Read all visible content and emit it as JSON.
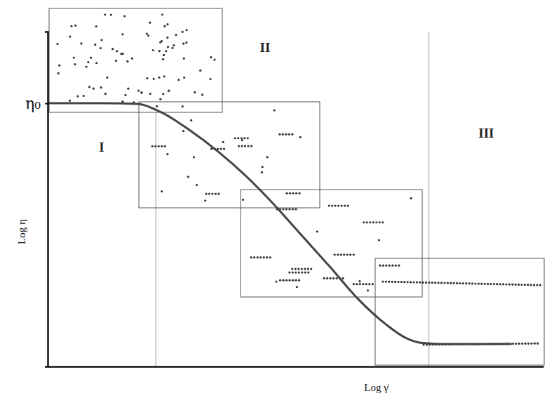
{
  "chart_data": {
    "type": "line",
    "x": [
      0,
      1.16,
      1.8,
      2.29,
      2.86,
      3.42,
      3.99,
      4.55,
      5.12,
      5.69,
      6.25,
      6.82,
      7.24,
      7.52,
      8.09,
      8.94,
      9.36
    ],
    "values": [
      7.86,
      7.86,
      7.84,
      7.59,
      7.06,
      6.44,
      5.7,
      4.86,
      3.92,
      2.98,
      2.03,
      1.26,
      0.84,
      0.71,
      0.67,
      0.67,
      0.67
    ],
    "xlim": [
      0,
      10
    ],
    "ylim": [
      0,
      10
    ],
    "xticks": [],
    "yticks": [
      {
        "value": 7.86,
        "label": "η₀"
      }
    ],
    "tick_labels": "y",
    "x_label": "Log γ̇",
    "y_label": "Log η",
    "regions": [
      "I",
      "II",
      "III"
    ],
    "region_boundaries": [
      2.18,
      7.69
    ],
    "color": "#444444",
    "grid": false
  }
}
